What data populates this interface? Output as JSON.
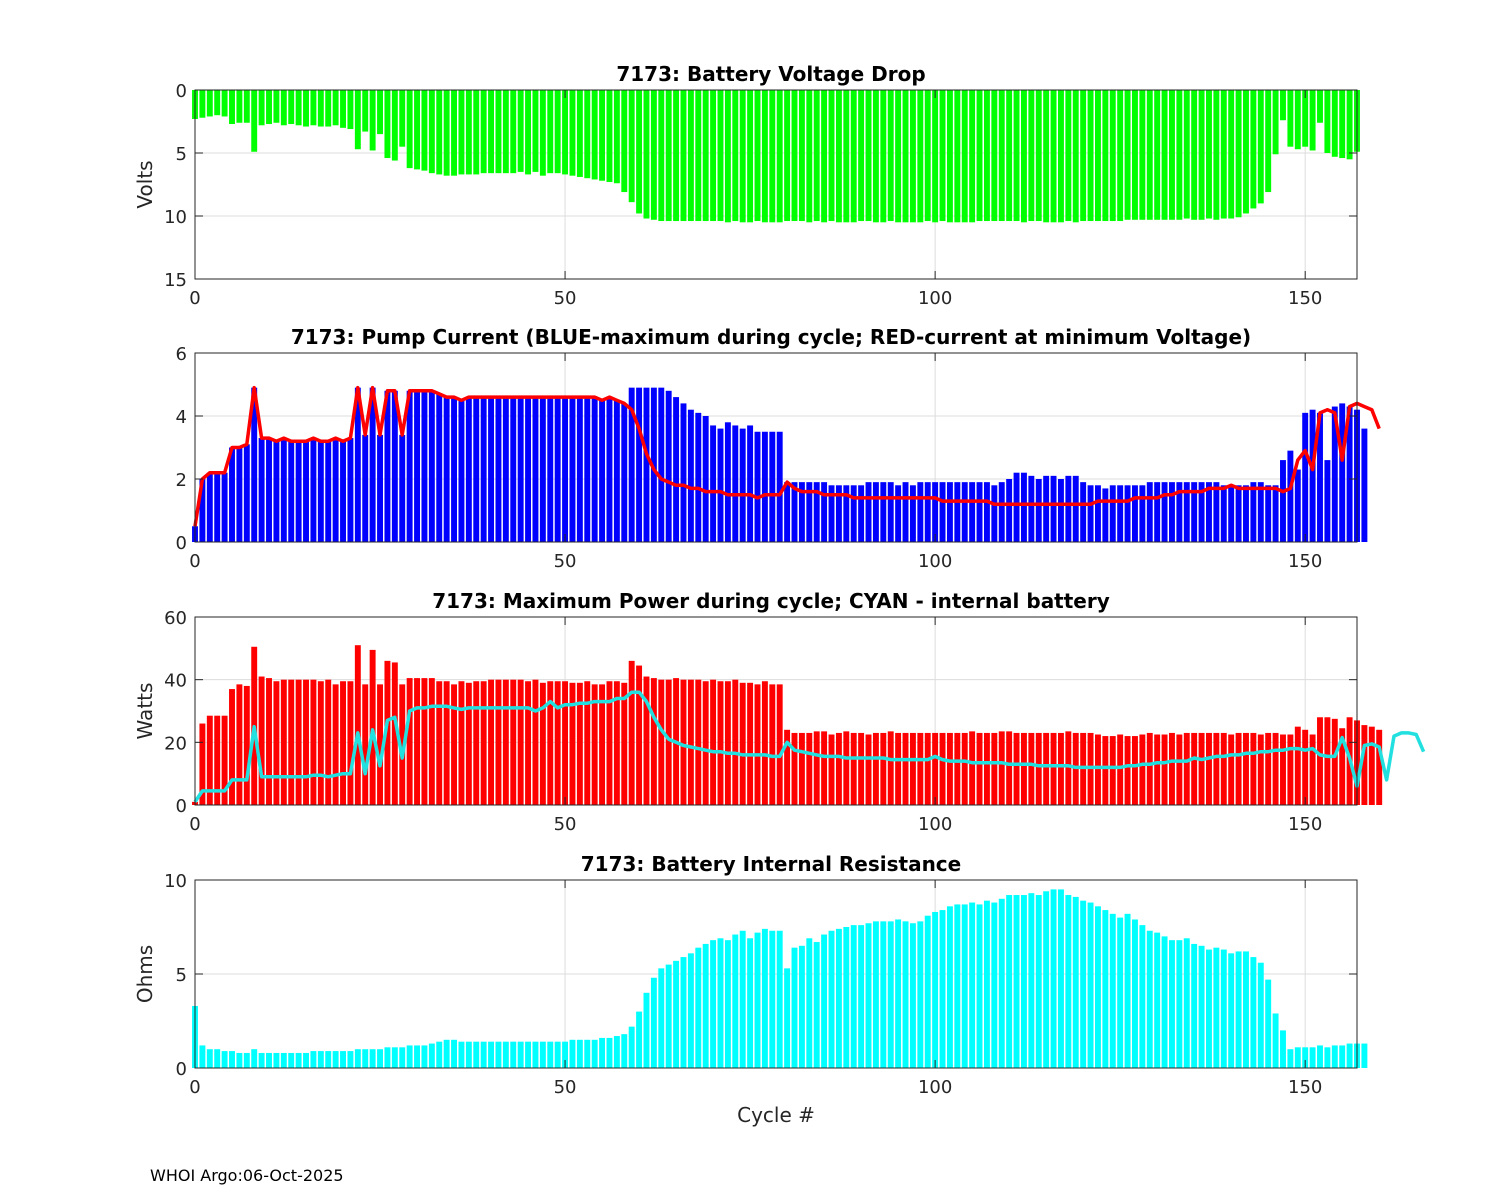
{
  "footer": "WHOI Argo:06-Oct-2025",
  "xlabel": "Cycle #",
  "chart_data": [
    {
      "type": "bar",
      "title": "7173: Battery Voltage Drop",
      "ylabel": "Volts",
      "xlim": [
        0,
        157
      ],
      "ylim": [
        0,
        15
      ],
      "y_reversed": true,
      "xticks": [
        0,
        50,
        100,
        150
      ],
      "yticks": [
        0,
        5,
        10,
        15
      ],
      "bar_color": "#00ff00",
      "x_start": 0,
      "values": [
        2.3,
        2.2,
        2.1,
        2.0,
        2.1,
        2.7,
        2.6,
        2.6,
        4.9,
        2.8,
        2.7,
        2.6,
        2.8,
        2.7,
        2.8,
        2.9,
        2.8,
        2.9,
        2.9,
        2.8,
        3.0,
        3.1,
        4.7,
        3.3,
        4.8,
        3.5,
        5.4,
        5.6,
        4.5,
        6.2,
        6.3,
        6.4,
        6.6,
        6.7,
        6.8,
        6.8,
        6.7,
        6.7,
        6.7,
        6.6,
        6.6,
        6.6,
        6.6,
        6.6,
        6.5,
        6.7,
        6.5,
        6.8,
        6.6,
        6.6,
        6.7,
        6.8,
        6.9,
        7.0,
        7.1,
        7.2,
        7.3,
        7.4,
        8.1,
        8.9,
        9.8,
        10.2,
        10.3,
        10.4,
        10.4,
        10.4,
        10.4,
        10.4,
        10.4,
        10.4,
        10.4,
        10.4,
        10.5,
        10.4,
        10.5,
        10.5,
        10.4,
        10.5,
        10.5,
        10.5,
        10.4,
        10.4,
        10.4,
        10.5,
        10.4,
        10.5,
        10.4,
        10.5,
        10.5,
        10.5,
        10.4,
        10.4,
        10.5,
        10.5,
        10.4,
        10.5,
        10.5,
        10.5,
        10.5,
        10.4,
        10.5,
        10.4,
        10.5,
        10.5,
        10.5,
        10.5,
        10.4,
        10.4,
        10.4,
        10.4,
        10.4,
        10.4,
        10.5,
        10.4,
        10.4,
        10.5,
        10.5,
        10.5,
        10.4,
        10.5,
        10.4,
        10.4,
        10.4,
        10.4,
        10.4,
        10.4,
        10.3,
        10.3,
        10.3,
        10.3,
        10.3,
        10.3,
        10.3,
        10.3,
        10.2,
        10.3,
        10.3,
        10.2,
        10.3,
        10.2,
        10.2,
        10.1,
        9.8,
        9.4,
        9.0,
        8.1,
        5.1,
        2.4,
        4.5,
        4.7,
        4.5,
        4.8,
        2.6,
        5.0,
        5.3,
        5.4,
        5.5,
        4.9
      ]
    },
    {
      "type": "bar+line",
      "title": "7173: Pump Current (BLUE-maximum during cycle; RED-current at minimum Voltage)",
      "ylabel": "",
      "xlim": [
        0,
        157
      ],
      "ylim": [
        0,
        6
      ],
      "xticks": [
        0,
        50,
        100,
        150
      ],
      "yticks": [
        0,
        2,
        4,
        6
      ],
      "bar_color": "#0000ff",
      "line_color": "#ff0000",
      "x_start": 0,
      "values": [
        0.5,
        2.0,
        2.2,
        2.2,
        2.2,
        3.0,
        3.0,
        3.1,
        4.9,
        3.3,
        3.3,
        3.2,
        3.3,
        3.2,
        3.2,
        3.2,
        3.3,
        3.2,
        3.2,
        3.3,
        3.2,
        3.3,
        4.9,
        3.4,
        4.9,
        3.4,
        4.8,
        4.8,
        3.4,
        4.8,
        4.8,
        4.8,
        4.8,
        4.7,
        4.6,
        4.6,
        4.5,
        4.6,
        4.6,
        4.6,
        4.6,
        4.6,
        4.6,
        4.6,
        4.6,
        4.6,
        4.6,
        4.6,
        4.6,
        4.6,
        4.6,
        4.6,
        4.6,
        4.6,
        4.6,
        4.5,
        4.6,
        4.5,
        4.4,
        4.9,
        4.9,
        4.9,
        4.9,
        4.9,
        4.8,
        4.6,
        4.4,
        4.2,
        4.1,
        4.0,
        3.7,
        3.6,
        3.8,
        3.7,
        3.6,
        3.7,
        3.5,
        3.5,
        3.5,
        3.5,
        1.9,
        1.9,
        1.9,
        1.9,
        1.9,
        1.9,
        1.8,
        1.8,
        1.8,
        1.8,
        1.8,
        1.9,
        1.9,
        1.9,
        1.9,
        1.8,
        1.9,
        1.8,
        1.9,
        1.9,
        1.9,
        1.9,
        1.9,
        1.9,
        1.9,
        1.9,
        1.9,
        1.9,
        1.8,
        1.9,
        2.0,
        2.2,
        2.2,
        2.1,
        2.0,
        2.1,
        2.1,
        2.0,
        2.1,
        2.1,
        1.9,
        1.8,
        1.8,
        1.7,
        1.8,
        1.8,
        1.8,
        1.8,
        1.8,
        1.9,
        1.9,
        1.9,
        1.9,
        1.9,
        1.9,
        1.9,
        1.9,
        1.9,
        1.9,
        1.8,
        1.8,
        1.8,
        1.8,
        1.9,
        1.9,
        1.8,
        1.8,
        2.6,
        2.9,
        2.3,
        4.1,
        4.2,
        4.1,
        2.6,
        4.3,
        4.4,
        4.3,
        4.2,
        3.6
      ],
      "line": [
        0.5,
        2.0,
        2.2,
        2.2,
        2.2,
        3.0,
        3.0,
        3.1,
        4.9,
        3.3,
        3.3,
        3.2,
        3.3,
        3.2,
        3.2,
        3.2,
        3.3,
        3.2,
        3.2,
        3.3,
        3.2,
        3.3,
        4.9,
        3.4,
        4.9,
        3.4,
        4.8,
        4.8,
        3.4,
        4.8,
        4.8,
        4.8,
        4.8,
        4.7,
        4.6,
        4.6,
        4.5,
        4.6,
        4.6,
        4.6,
        4.6,
        4.6,
        4.6,
        4.6,
        4.6,
        4.6,
        4.6,
        4.6,
        4.6,
        4.6,
        4.6,
        4.6,
        4.6,
        4.6,
        4.6,
        4.5,
        4.6,
        4.5,
        4.4,
        4.2,
        3.6,
        2.8,
        2.3,
        2.0,
        1.9,
        1.8,
        1.8,
        1.7,
        1.7,
        1.6,
        1.6,
        1.6,
        1.5,
        1.5,
        1.5,
        1.5,
        1.4,
        1.5,
        1.5,
        1.5,
        1.9,
        1.7,
        1.6,
        1.6,
        1.6,
        1.5,
        1.5,
        1.5,
        1.5,
        1.4,
        1.4,
        1.4,
        1.4,
        1.4,
        1.4,
        1.4,
        1.4,
        1.4,
        1.4,
        1.4,
        1.4,
        1.3,
        1.3,
        1.3,
        1.3,
        1.3,
        1.3,
        1.3,
        1.2,
        1.2,
        1.2,
        1.2,
        1.2,
        1.2,
        1.2,
        1.2,
        1.2,
        1.2,
        1.2,
        1.2,
        1.2,
        1.2,
        1.3,
        1.3,
        1.3,
        1.3,
        1.3,
        1.4,
        1.4,
        1.4,
        1.4,
        1.5,
        1.5,
        1.6,
        1.6,
        1.6,
        1.6,
        1.7,
        1.7,
        1.7,
        1.8,
        1.7,
        1.7,
        1.7,
        1.7,
        1.7,
        1.7,
        1.6,
        1.7,
        2.6,
        2.9,
        2.3,
        4.1,
        4.2,
        4.1,
        2.6,
        4.3,
        4.4,
        4.3,
        4.2,
        3.6
      ]
    },
    {
      "type": "bar+line",
      "title": "7173: Maximum Power during cycle; CYAN - internal battery",
      "ylabel": "Watts",
      "xlim": [
        0,
        157
      ],
      "ylim": [
        0,
        60
      ],
      "xticks": [
        0,
        50,
        100,
        150
      ],
      "yticks": [
        0,
        20,
        40,
        60
      ],
      "bar_color": "#ff0000",
      "line_color": "#22e0e0",
      "x_start": 0,
      "values": [
        1,
        26,
        28.5,
        28.5,
        28.5,
        37,
        38.5,
        38,
        50.5,
        41,
        40.5,
        39.5,
        40,
        40,
        40,
        40,
        40,
        39.5,
        40,
        38.5,
        39.5,
        39.5,
        51,
        38.5,
        49.5,
        38.5,
        46,
        45.5,
        38.5,
        40.5,
        40.5,
        40.5,
        40.5,
        39.5,
        39.5,
        38.5,
        39.5,
        39,
        39.5,
        39.5,
        40,
        40,
        40,
        40,
        40,
        39.5,
        40,
        39,
        39.5,
        39.5,
        39.5,
        39,
        39,
        39.5,
        38.5,
        38.5,
        39.5,
        39.5,
        39,
        46,
        44.5,
        41,
        40.5,
        40,
        40,
        40.5,
        40,
        40,
        40,
        39.5,
        40,
        39.5,
        39.5,
        40,
        39,
        39,
        38.5,
        39.5,
        38.5,
        38.5,
        24,
        23,
        23,
        23,
        23.5,
        23.5,
        22.5,
        23,
        23.5,
        23,
        23,
        22.5,
        23,
        23,
        23.5,
        23,
        23,
        23,
        23,
        23,
        23,
        23,
        23,
        23,
        23,
        23.5,
        23,
        23,
        23,
        23.5,
        23.5,
        23,
        23,
        23,
        23,
        23,
        23,
        23,
        23.5,
        23,
        23,
        23,
        22.5,
        22,
        22,
        22.5,
        22,
        22,
        22.5,
        23,
        22.5,
        22.5,
        23,
        22.5,
        23,
        23,
        23,
        23,
        23,
        23,
        22.5,
        23,
        23,
        23,
        22.5,
        23,
        23,
        22.5,
        22.5,
        25,
        24,
        22.5,
        28,
        28,
        27.5,
        24.5,
        28,
        27,
        25.5,
        25,
        24
      ],
      "line": [
        1,
        4.5,
        4.5,
        4.5,
        4.5,
        8,
        8,
        8,
        25,
        9,
        9,
        9,
        9,
        9,
        9,
        9,
        9.5,
        9.5,
        9,
        9.5,
        10,
        10,
        23,
        10,
        24,
        12.5,
        27,
        28,
        15,
        30,
        31,
        31,
        31.5,
        31.5,
        31.5,
        31,
        30.5,
        31,
        31,
        31,
        31,
        31,
        31,
        31,
        31,
        31,
        30,
        31,
        33,
        31,
        32,
        32,
        32.5,
        32.5,
        33,
        33,
        33,
        34,
        34,
        36,
        36,
        33,
        28,
        24,
        21,
        20,
        19,
        18.5,
        18,
        17.5,
        17,
        17,
        16.5,
        16.5,
        16,
        16,
        16,
        16,
        15.5,
        15.5,
        20,
        17.5,
        17,
        16.5,
        16,
        15.5,
        15.5,
        15.5,
        15,
        15,
        15,
        15,
        15,
        15,
        14.5,
        14.5,
        14.5,
        14.5,
        14.5,
        14.5,
        15.5,
        14.5,
        14,
        14,
        14,
        13.5,
        13.5,
        13.5,
        13.5,
        13.5,
        13,
        13,
        13,
        13,
        12.5,
        12.5,
        12.5,
        12.5,
        12.5,
        12,
        12,
        12,
        12,
        12,
        12,
        12,
        12.5,
        12.5,
        13,
        13,
        13.5,
        13.5,
        14,
        14,
        14,
        15,
        14.5,
        15,
        15.5,
        15.5,
        16,
        16,
        16.5,
        16.5,
        17,
        17,
        17.5,
        17.5,
        18,
        18,
        17.5,
        18,
        16,
        15.5,
        15.5,
        21.5,
        15,
        6,
        19,
        19.5,
        18.5,
        8,
        22,
        23,
        23,
        22.5,
        17
      ]
    },
    {
      "type": "bar",
      "title": "7173: Battery Internal Resistance",
      "ylabel": "Ohms",
      "xlim": [
        0,
        157
      ],
      "ylim": [
        0,
        10
      ],
      "xticks": [
        0,
        50,
        100,
        150
      ],
      "yticks": [
        0,
        5,
        10
      ],
      "bar_color": "#00ffff",
      "x_start": 0,
      "values": [
        3.3,
        1.2,
        1.0,
        1.0,
        0.9,
        0.9,
        0.8,
        0.8,
        1.0,
        0.8,
        0.8,
        0.8,
        0.8,
        0.8,
        0.8,
        0.8,
        0.9,
        0.9,
        0.9,
        0.9,
        0.9,
        0.9,
        1.0,
        1.0,
        1.0,
        1.0,
        1.1,
        1.1,
        1.1,
        1.2,
        1.2,
        1.2,
        1.3,
        1.4,
        1.5,
        1.5,
        1.4,
        1.4,
        1.4,
        1.4,
        1.4,
        1.4,
        1.4,
        1.4,
        1.4,
        1.4,
        1.4,
        1.4,
        1.4,
        1.4,
        1.4,
        1.5,
        1.5,
        1.5,
        1.5,
        1.6,
        1.6,
        1.7,
        1.8,
        2.2,
        3.0,
        4.0,
        4.8,
        5.3,
        5.5,
        5.7,
        5.9,
        6.1,
        6.4,
        6.6,
        6.8,
        6.9,
        6.8,
        7.1,
        7.3,
        6.9,
        7.2,
        7.4,
        7.3,
        7.3,
        5.3,
        6.4,
        6.5,
        6.9,
        6.7,
        7.1,
        7.3,
        7.4,
        7.5,
        7.6,
        7.6,
        7.7,
        7.8,
        7.8,
        7.8,
        7.9,
        7.8,
        7.7,
        7.8,
        8.1,
        8.3,
        8.4,
        8.6,
        8.7,
        8.7,
        8.8,
        8.7,
        8.9,
        8.8,
        9.0,
        9.2,
        9.2,
        9.2,
        9.3,
        9.2,
        9.4,
        9.5,
        9.5,
        9.2,
        9.1,
        8.9,
        8.8,
        8.6,
        8.4,
        8.2,
        8.0,
        8.2,
        7.9,
        7.6,
        7.3,
        7.2,
        7.0,
        6.8,
        6.8,
        6.9,
        6.6,
        6.5,
        6.3,
        6.4,
        6.3,
        6.1,
        6.2,
        6.2,
        5.9,
        5.6,
        4.7,
        2.9,
        2.0,
        1.0,
        1.1,
        1.1,
        1.1,
        1.2,
        1.1,
        1.2,
        1.2,
        1.3,
        1.3,
        1.3
      ]
    }
  ]
}
